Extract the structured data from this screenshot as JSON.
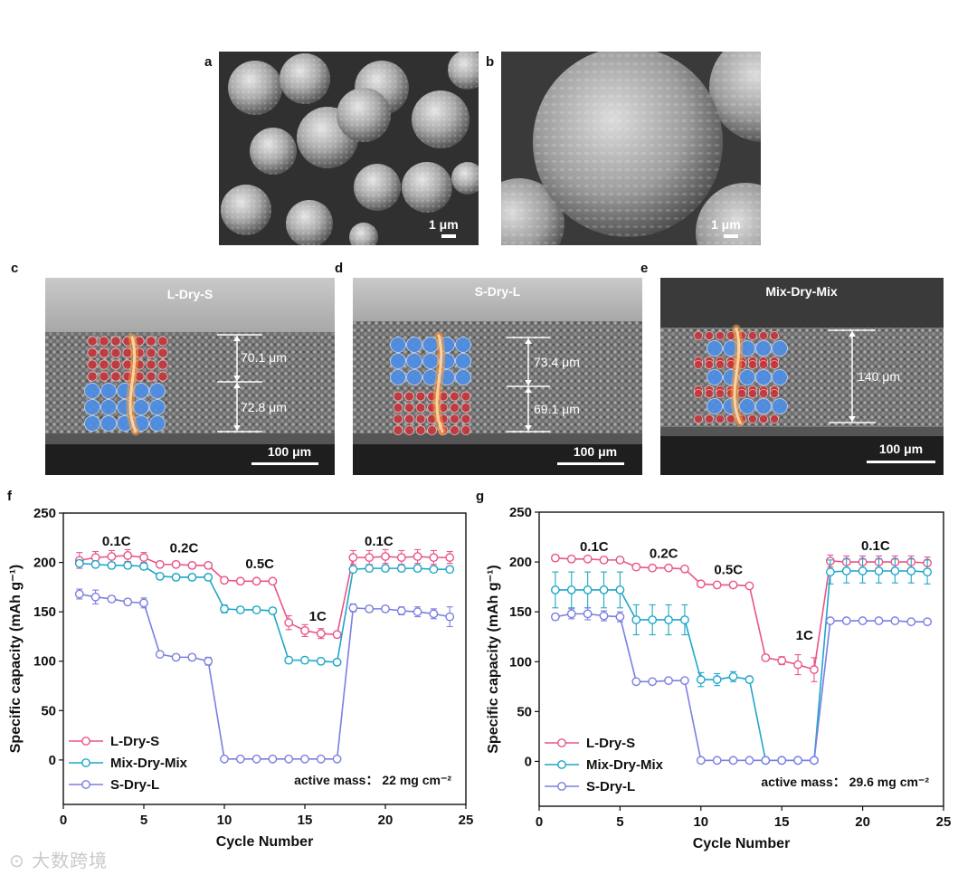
{
  "panels": {
    "a": {
      "letter": "a",
      "scale_label": "1 μm"
    },
    "b": {
      "letter": "b",
      "scale_label": "1 μm"
    },
    "c": {
      "letter": "c",
      "title": "L-Dry-S",
      "upper_thickness": "70.1 μm",
      "lower_thickness": "72.8 μm",
      "scale_label": "100 μm"
    },
    "d": {
      "letter": "d",
      "title": "S-Dry-L",
      "upper_thickness": "73.4 μm",
      "lower_thickness": "69.1 μm",
      "scale_label": "100 μm"
    },
    "e": {
      "letter": "e",
      "title": "Mix-Dry-Mix",
      "thickness": "140 μm",
      "scale_label": "100 μm"
    }
  },
  "colors": {
    "l_dry_s": "#e8558a",
    "mix_dry_mix": "#1fa6c9",
    "s_dry_l": "#7b7fe0",
    "large_particle": "#4f8fe6",
    "small_particle": "#c4363c"
  },
  "chart_data": [
    {
      "letter": "f",
      "type": "line",
      "xlabel": "Cycle Number",
      "ylabel": "Specific capacity (mAh g⁻¹)",
      "xlim": [
        0,
        25
      ],
      "ylim": [
        -45,
        250
      ],
      "xticks": [
        0,
        5,
        10,
        15,
        20,
        25
      ],
      "yticks": [
        0,
        50,
        100,
        150,
        200,
        250
      ],
      "legend_position": "bottom-left",
      "annotation": "active mass： 22 mg cm⁻²",
      "rate_labels": [
        {
          "text": "0.1C",
          "x": 3.3,
          "y": 217
        },
        {
          "text": "0.2C",
          "x": 7.5,
          "y": 210
        },
        {
          "text": "0.5C",
          "x": 12.2,
          "y": 194
        },
        {
          "text": "1C",
          "x": 15.8,
          "y": 141
        },
        {
          "text": "0.1C",
          "x": 19.6,
          "y": 217
        }
      ],
      "x": [
        1,
        2,
        3,
        4,
        5,
        6,
        7,
        8,
        9,
        10,
        11,
        12,
        13,
        14,
        15,
        16,
        17,
        18,
        19,
        20,
        21,
        22,
        23,
        24
      ],
      "series": [
        {
          "name": "L-Dry-S",
          "color": "#e8558a",
          "values": [
            202,
            205,
            206,
            207,
            205,
            198,
            198,
            197,
            197,
            182,
            181,
            181,
            181,
            139,
            131,
            128,
            127,
            205,
            205,
            206,
            205,
            206,
            205,
            205
          ],
          "errors": [
            8,
            6,
            6,
            6,
            5,
            3,
            3,
            3,
            3,
            3,
            3,
            2,
            2,
            7,
            6,
            5,
            3,
            7,
            7,
            7,
            7,
            7,
            7,
            6
          ]
        },
        {
          "name": "Mix-Dry-Mix",
          "color": "#1fa6c9",
          "values": [
            199,
            198,
            197,
            197,
            196,
            186,
            185,
            185,
            185,
            153,
            152,
            152,
            151,
            101,
            101,
            100,
            99,
            193,
            194,
            194,
            194,
            194,
            193,
            193
          ],
          "errors": [
            3,
            3,
            3,
            3,
            3,
            3,
            3,
            3,
            3,
            4,
            3,
            3,
            3,
            3,
            3,
            3,
            3,
            3,
            3,
            3,
            3,
            3,
            3,
            3
          ]
        },
        {
          "name": "S-Dry-L",
          "color": "#7b7fe0",
          "values": [
            168,
            165,
            163,
            160,
            159,
            107,
            104,
            104,
            100,
            1,
            1,
            1,
            1,
            1,
            1,
            1,
            1,
            154,
            153,
            153,
            151,
            150,
            148,
            145
          ],
          "errors": [
            5,
            7,
            3,
            3,
            5,
            2,
            2,
            3,
            4,
            1,
            1,
            1,
            1,
            1,
            1,
            1,
            1,
            4,
            3,
            3,
            4,
            5,
            5,
            10
          ]
        }
      ]
    },
    {
      "letter": "g",
      "type": "line",
      "xlabel": "Cycle Number",
      "ylabel": "Specific capacity (mAh g⁻¹)",
      "xlim": [
        0,
        25
      ],
      "ylim": [
        -45,
        250
      ],
      "xticks": [
        0,
        5,
        10,
        15,
        20,
        25
      ],
      "yticks": [
        0,
        50,
        100,
        150,
        200,
        250
      ],
      "legend_position": "bottom-left",
      "annotation": "active mass： 29.6 mg cm⁻²",
      "rate_labels": [
        {
          "text": "0.1C",
          "x": 3.4,
          "y": 211
        },
        {
          "text": "0.2C",
          "x": 7.7,
          "y": 204
        },
        {
          "text": "0.5C",
          "x": 11.7,
          "y": 188
        },
        {
          "text": "1C",
          "x": 16.4,
          "y": 122
        },
        {
          "text": "0.1C",
          "x": 20.8,
          "y": 212
        }
      ],
      "x": [
        1,
        2,
        3,
        4,
        5,
        6,
        7,
        8,
        9,
        10,
        11,
        12,
        13,
        14,
        15,
        16,
        17,
        18,
        19,
        20,
        21,
        22,
        23,
        24
      ],
      "series": [
        {
          "name": "L-Dry-S",
          "color": "#e8558a",
          "values": [
            204,
            203,
            203,
            202,
            202,
            195,
            194,
            194,
            193,
            178,
            177,
            177,
            176,
            104,
            101,
            97,
            92,
            201,
            200,
            200,
            200,
            200,
            200,
            199
          ],
          "errors": [
            3,
            3,
            2,
            2,
            2,
            3,
            2,
            2,
            2,
            2,
            2,
            2,
            2,
            3,
            4,
            10,
            12,
            6,
            6,
            6,
            6,
            6,
            6,
            6
          ]
        },
        {
          "name": "Mix-Dry-Mix",
          "color": "#1fa6c9",
          "values": [
            172,
            172,
            172,
            172,
            172,
            142,
            142,
            142,
            142,
            82,
            82,
            85,
            82,
            1,
            1,
            1,
            1,
            190,
            191,
            191,
            191,
            191,
            191,
            190
          ],
          "errors": [
            18,
            18,
            18,
            18,
            18,
            15,
            15,
            15,
            15,
            7,
            6,
            5,
            3,
            1,
            1,
            1,
            1,
            12,
            12,
            12,
            12,
            12,
            12,
            12
          ]
        },
        {
          "name": "S-Dry-L",
          "color": "#7b7fe0",
          "values": [
            145,
            148,
            148,
            146,
            145,
            80,
            80,
            81,
            81,
            1,
            1,
            1,
            1,
            1,
            1,
            1,
            1,
            141,
            141,
            141,
            141,
            141,
            140,
            140
          ],
          "errors": [
            3,
            5,
            6,
            5,
            5,
            2,
            2,
            2,
            2,
            1,
            1,
            1,
            1,
            1,
            1,
            1,
            1,
            2,
            2,
            2,
            2,
            2,
            2,
            2
          ]
        }
      ]
    }
  ],
  "watermark": "大数跨境"
}
